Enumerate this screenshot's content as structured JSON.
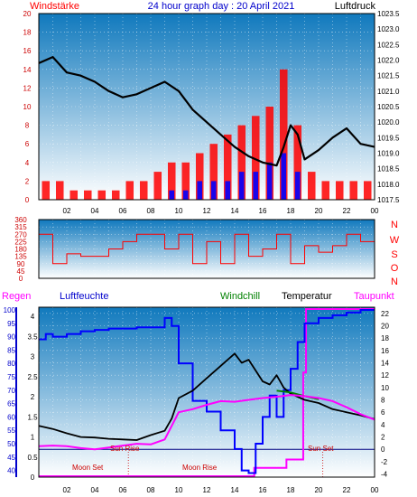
{
  "header": {
    "left_label": "Windstärke",
    "title": "24 hour graph day : 20 April 2021",
    "right_label": "Luftdruck"
  },
  "legend": {
    "regen": "Regen",
    "luftfeuchte": "Luftfeuchte",
    "windchill": "Windchill",
    "temperatur": "Temperatur",
    "taupunkt": "Taupunkt"
  },
  "direction_letters": [
    "N",
    "W",
    "S",
    "O",
    "N"
  ],
  "annotations": {
    "sun_rise": "Sun Rise",
    "sun_set": "Sun Set",
    "moon_set": "Moon Set",
    "moon_rise": "Moon Rise"
  },
  "colors": {
    "panel_top": "#1079bd",
    "panel_bottom": "#ffffff",
    "wind_gust": "#ff0000",
    "wind_avg": "#0000ff",
    "pressure": "#000000",
    "wind_dir": "#ff0000",
    "humidity": "#0000ff",
    "temperature": "#000000",
    "windchill": "#008000",
    "dewpoint": "#ff00ff",
    "rain": "#ff00ff",
    "header_red": "#ff0000",
    "header_blue": "#0000cc"
  },
  "chart_data": [
    {
      "type": "bar",
      "name": "wind",
      "x_ticks": [
        "02",
        "04",
        "06",
        "08",
        "10",
        "12",
        "14",
        "16",
        "18",
        "20",
        "22",
        "00"
      ],
      "y_ticks": [
        0,
        2,
        4,
        6,
        8,
        10,
        12,
        14,
        16,
        18,
        20
      ],
      "ylim": [
        0,
        20
      ],
      "ylabel": "Windstärke",
      "series": [
        {
          "hours": [
            0.5,
            1.5,
            2.5,
            3.5,
            4.5,
            5.5,
            6.5,
            7.5,
            8.5,
            9.5,
            10.5,
            11.5,
            12.5,
            13.5,
            14.5,
            15.5,
            16.5,
            17.5,
            18.5,
            19.5,
            20.5,
            21.5,
            22.5,
            23.5
          ],
          "gust": [
            2,
            2,
            1,
            1,
            1,
            1,
            2,
            2,
            3,
            4,
            4,
            5,
            6,
            7,
            8,
            9,
            10,
            14,
            8,
            3,
            2,
            2,
            2,
            2
          ],
          "avg": [
            0,
            0,
            0,
            0,
            0,
            0,
            0,
            0,
            0,
            1,
            1,
            2,
            2,
            2,
            3,
            3,
            4,
            5,
            3,
            0,
            0,
            0,
            0,
            0
          ]
        }
      ]
    },
    {
      "type": "line",
      "name": "pressure",
      "ylim": [
        1017.5,
        1023.5
      ],
      "y_ticks": [
        1017.5,
        1018,
        1018.5,
        1019,
        1019.5,
        1020,
        1020.5,
        1021,
        1021.5,
        1022,
        1022.5,
        1023,
        1023.5
      ],
      "ylabel": "Luftdruck",
      "series": [
        {
          "hours": [
            0,
            1,
            2,
            3,
            4,
            5,
            6,
            7,
            8,
            9,
            10,
            11,
            12,
            13,
            14,
            15,
            16,
            17,
            17.5,
            18,
            18.5,
            19,
            20,
            21,
            22,
            23,
            24
          ],
          "values": [
            1021.9,
            1022.1,
            1021.6,
            1021.5,
            1021.3,
            1021.0,
            1020.8,
            1020.9,
            1021.1,
            1021.3,
            1021.0,
            1020.4,
            1020.0,
            1019.6,
            1019.2,
            1018.9,
            1018.7,
            1018.6,
            1019.2,
            1019.9,
            1019.6,
            1018.8,
            1019.1,
            1019.5,
            1019.8,
            1019.3,
            1019.2
          ]
        }
      ]
    },
    {
      "type": "line",
      "name": "wind_direction",
      "y_ticks": [
        0,
        45,
        90,
        135,
        180,
        225,
        270,
        315,
        360
      ],
      "ylim": [
        0,
        360
      ],
      "series": [
        {
          "hours": [
            0,
            1,
            2,
            3,
            4,
            5,
            6,
            7,
            8,
            9,
            10,
            11,
            12,
            13,
            14,
            15,
            16,
            17,
            18,
            19,
            20,
            21,
            22,
            23,
            24
          ],
          "values": [
            270,
            90,
            150,
            135,
            135,
            180,
            225,
            270,
            270,
            180,
            270,
            90,
            225,
            90,
            270,
            135,
            180,
            270,
            90,
            200,
            160,
            200,
            270,
            225,
            225
          ]
        }
      ]
    },
    {
      "type": "line",
      "name": "humidity",
      "y_ticks": [
        40,
        45,
        50,
        55,
        60,
        65,
        70,
        75,
        80,
        85,
        90,
        95,
        100
      ],
      "ylim": [
        37.5,
        101
      ],
      "ylabel": "Luftfeuchte",
      "series": [
        {
          "hours": [
            0,
            0.5,
            1,
            2,
            3,
            4,
            5,
            6,
            7,
            8,
            9,
            9.5,
            10,
            11,
            12,
            13,
            14,
            14.5,
            15,
            15.5,
            16,
            16.5,
            17,
            17.5,
            18,
            18.5,
            19,
            20,
            21,
            22,
            23,
            24
          ],
          "values": [
            89,
            91,
            90,
            91,
            92,
            92.5,
            93,
            93,
            93.5,
            93.5,
            97,
            94,
            80,
            66,
            62,
            55,
            48,
            40,
            39,
            50,
            60,
            68,
            60,
            70,
            78,
            88,
            95,
            97,
            98,
            99,
            100,
            100
          ]
        }
      ]
    },
    {
      "type": "line",
      "name": "temperature",
      "ylim": [
        -4.5,
        23
      ],
      "y_ticks": [
        -4,
        -2,
        0,
        2,
        4,
        6,
        8,
        10,
        12,
        14,
        16,
        18,
        20,
        22
      ],
      "ylabel": "Temperatur",
      "series": [
        {
          "name": "Temperatur",
          "hours": [
            0,
            1,
            2,
            3,
            4,
            5,
            6,
            7,
            8,
            9,
            9.5,
            10,
            11,
            12,
            13,
            14,
            14.5,
            15,
            16,
            16.5,
            17,
            17.5,
            18,
            19,
            20,
            21,
            22,
            23,
            24
          ],
          "values": [
            3.8,
            3.3,
            2.6,
            2.0,
            1.9,
            1.7,
            1.6,
            1.5,
            2.3,
            3.0,
            5.0,
            8.3,
            9.5,
            11.5,
            13.5,
            15.5,
            14.0,
            14.5,
            11.0,
            10.5,
            12.0,
            10.0,
            9.0,
            8.0,
            7.5,
            6.5,
            6.0,
            5.5,
            4.9
          ]
        },
        {
          "name": "Windchill",
          "hours": [
            17,
            18,
            19,
            20
          ],
          "values": [
            9.5,
            9.2,
            8.6,
            8.1
          ]
        },
        {
          "name": "Taupunkt",
          "hours": [
            0,
            1,
            2,
            3,
            4,
            5,
            6,
            7,
            8,
            9,
            10,
            11,
            12,
            13,
            14,
            15,
            16,
            17,
            18,
            19,
            20,
            21,
            22,
            23,
            24
          ],
          "values": [
            0.5,
            0.6,
            0.5,
            0.2,
            0.0,
            0.3,
            0.6,
            0.9,
            0.8,
            1.6,
            6.0,
            6.5,
            7.2,
            7.8,
            7.7,
            8.0,
            8.3,
            8.5,
            8.8,
            8.6,
            8.3,
            7.8,
            6.8,
            5.7,
            4.8
          ]
        }
      ]
    },
    {
      "type": "line",
      "name": "rain",
      "ylabel": "Regen",
      "ylim": [
        0,
        1
      ],
      "series": [
        {
          "hours": [
            0,
            15.3,
            15.4,
            17.6,
            17.7,
            18.3,
            18.9,
            19.1,
            24
          ],
          "values": [
            0,
            0,
            0.05,
            0.05,
            0.1,
            0.1,
            0.62,
            1.0,
            1.0
          ]
        }
      ]
    }
  ]
}
